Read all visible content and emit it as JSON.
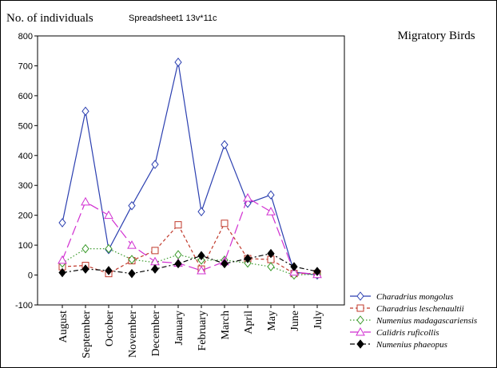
{
  "header": {
    "ylabel": "No. of individuals",
    "sheet": "Spreadsheet1 13v*11c",
    "title": "Migratory Birds"
  },
  "chart_data": {
    "type": "line",
    "title": "Migratory Birds",
    "ylabel": "No. of individuals",
    "xlabel": "",
    "ylim": [
      -100,
      800
    ],
    "yticks": [
      -100,
      0,
      100,
      200,
      300,
      400,
      500,
      600,
      700,
      800
    ],
    "grid": false,
    "legend_position": "bottom-right",
    "categories": [
      "August",
      "September",
      "October",
      "November",
      "December",
      "January",
      "February",
      "March",
      "April",
      "May",
      "June",
      "July"
    ],
    "series": [
      {
        "name": "Charadrius mongolus",
        "color": "#2b3fb0",
        "dash": "solid",
        "marker": "diamond-open",
        "values": [
          175,
          548,
          85,
          232,
          370,
          712,
          212,
          436,
          240,
          268,
          10,
          0
        ]
      },
      {
        "name": "Charadrius leschenaultii",
        "color": "#c0392b",
        "dash": "dashed",
        "marker": "square-open",
        "values": [
          28,
          32,
          5,
          48,
          82,
          168,
          20,
          173,
          55,
          52,
          5,
          5
        ]
      },
      {
        "name": "Numenius madagascariensis",
        "color": "#3a9a2a",
        "dash": "dotted",
        "marker": "diamond-open",
        "values": [
          40,
          88,
          88,
          52,
          42,
          68,
          50,
          50,
          40,
          28,
          0,
          3
        ]
      },
      {
        "name": "Calidris ruficollis",
        "color": "#d12fd1",
        "dash": "longdash",
        "marker": "triangle-open",
        "values": [
          50,
          245,
          200,
          100,
          45,
          40,
          15,
          45,
          258,
          212,
          10,
          2
        ]
      },
      {
        "name": "Numenius phaeopus",
        "color": "#000000",
        "dash": "dashdot",
        "marker": "diamond-filled",
        "values": [
          8,
          20,
          15,
          5,
          20,
          38,
          65,
          38,
          55,
          72,
          28,
          12
        ]
      }
    ]
  }
}
